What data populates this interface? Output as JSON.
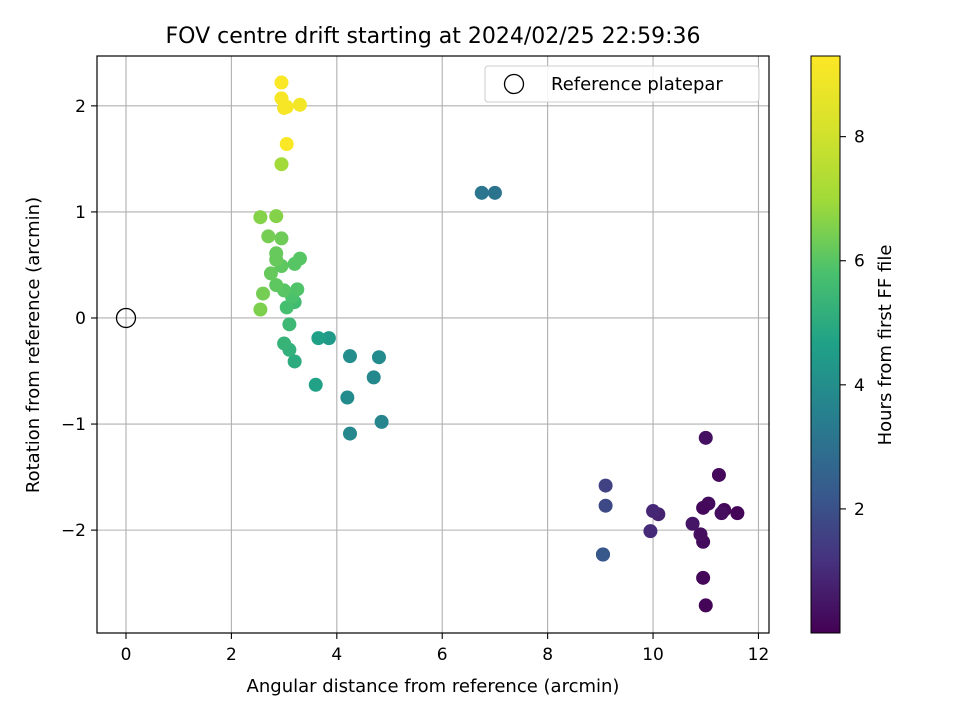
{
  "chart_data": {
    "type": "scatter",
    "title": "FOV centre drift starting at 2024/02/25 22:59:36",
    "xlabel": "Angular distance from reference (arcmin)",
    "ylabel": "Rotation from reference (arcmin)",
    "xlim": [
      -0.55,
      12.2
    ],
    "ylim": [
      -2.97,
      2.47
    ],
    "xticks": [
      0,
      2,
      4,
      6,
      8,
      10,
      12
    ],
    "yticks": [
      -2,
      -1,
      0,
      1,
      2
    ],
    "grid": true,
    "legend": {
      "placement": "top-right",
      "entries": [
        "Reference platepar"
      ]
    },
    "reference_point": {
      "x": 0,
      "y": 0,
      "label": "Reference platepar"
    },
    "colorbar": {
      "label": "Hours from first FF file",
      "colormap": "viridis",
      "range": [
        0,
        9.3
      ],
      "ticks": [
        2,
        4,
        6,
        8
      ]
    },
    "points": [
      {
        "x": 11.0,
        "y": -2.71,
        "c": 0.1
      },
      {
        "x": 10.95,
        "y": -2.45,
        "c": 0.15
      },
      {
        "x": 11.0,
        "y": -1.13,
        "c": 0.35
      },
      {
        "x": 11.25,
        "y": -1.48,
        "c": 0.2
      },
      {
        "x": 11.6,
        "y": -1.84,
        "c": 0.1
      },
      {
        "x": 11.35,
        "y": -1.81,
        "c": 0.2
      },
      {
        "x": 11.3,
        "y": -1.84,
        "c": 0.3
      },
      {
        "x": 11.05,
        "y": -1.75,
        "c": 0.25
      },
      {
        "x": 10.95,
        "y": -1.79,
        "c": 0.2
      },
      {
        "x": 10.95,
        "y": -2.11,
        "c": 0.25
      },
      {
        "x": 10.9,
        "y": -2.04,
        "c": 0.3
      },
      {
        "x": 10.75,
        "y": -1.94,
        "c": 0.5
      },
      {
        "x": 10.1,
        "y": -1.85,
        "c": 0.8
      },
      {
        "x": 10.0,
        "y": -1.82,
        "c": 0.9
      },
      {
        "x": 9.95,
        "y": -2.01,
        "c": 1.0
      },
      {
        "x": 9.1,
        "y": -1.58,
        "c": 1.6
      },
      {
        "x": 9.1,
        "y": -1.77,
        "c": 1.8
      },
      {
        "x": 9.05,
        "y": -2.23,
        "c": 1.8
      },
      {
        "x": 9.05,
        "y": -2.23,
        "c": 2.2
      },
      {
        "x": 6.75,
        "y": 1.18,
        "c": 3.2
      },
      {
        "x": 7.0,
        "y": 1.18,
        "c": 3.1
      },
      {
        "x": 4.85,
        "y": -0.98,
        "c": 3.7
      },
      {
        "x": 4.25,
        "y": -1.09,
        "c": 3.8
      },
      {
        "x": 4.2,
        "y": -0.75,
        "c": 3.9
      },
      {
        "x": 4.7,
        "y": -0.56,
        "c": 3.8
      },
      {
        "x": 4.8,
        "y": -0.37,
        "c": 3.9
      },
      {
        "x": 4.25,
        "y": -0.36,
        "c": 4.0
      },
      {
        "x": 3.85,
        "y": -0.19,
        "c": 4.4
      },
      {
        "x": 3.65,
        "y": -0.19,
        "c": 4.6
      },
      {
        "x": 3.6,
        "y": -0.63,
        "c": 4.7
      },
      {
        "x": 3.2,
        "y": -0.41,
        "c": 5.0
      },
      {
        "x": 3.1,
        "y": -0.3,
        "c": 5.2
      },
      {
        "x": 3.0,
        "y": -0.24,
        "c": 5.3
      },
      {
        "x": 3.1,
        "y": -0.06,
        "c": 5.5
      },
      {
        "x": 3.2,
        "y": 0.15,
        "c": 5.6
      },
      {
        "x": 3.05,
        "y": 0.1,
        "c": 5.7
      },
      {
        "x": 3.15,
        "y": 0.2,
        "c": 5.8
      },
      {
        "x": 3.25,
        "y": 0.27,
        "c": 5.9
      },
      {
        "x": 3.0,
        "y": 0.26,
        "c": 6.0
      },
      {
        "x": 2.85,
        "y": 0.31,
        "c": 6.1
      },
      {
        "x": 2.75,
        "y": 0.42,
        "c": 6.2
      },
      {
        "x": 2.6,
        "y": 0.23,
        "c": 6.4
      },
      {
        "x": 2.55,
        "y": 0.08,
        "c": 6.5
      },
      {
        "x": 2.95,
        "y": 0.49,
        "c": 6.1
      },
      {
        "x": 2.85,
        "y": 0.55,
        "c": 6.2
      },
      {
        "x": 2.85,
        "y": 0.61,
        "c": 6.2
      },
      {
        "x": 3.2,
        "y": 0.51,
        "c": 6.0
      },
      {
        "x": 3.3,
        "y": 0.56,
        "c": 6.0
      },
      {
        "x": 2.95,
        "y": 0.75,
        "c": 6.3
      },
      {
        "x": 2.7,
        "y": 0.77,
        "c": 6.4
      },
      {
        "x": 2.55,
        "y": 0.95,
        "c": 6.6
      },
      {
        "x": 2.85,
        "y": 0.96,
        "c": 6.6
      },
      {
        "x": 2.95,
        "y": 1.45,
        "c": 7.0
      },
      {
        "x": 3.05,
        "y": 1.64,
        "c": 9.2
      },
      {
        "x": 3.0,
        "y": 1.98,
        "c": 9.0
      },
      {
        "x": 3.05,
        "y": 1.99,
        "c": 9.1
      },
      {
        "x": 3.3,
        "y": 2.01,
        "c": 9.0
      },
      {
        "x": 2.95,
        "y": 2.07,
        "c": 9.1
      },
      {
        "x": 2.95,
        "y": 2.22,
        "c": 9.2
      }
    ]
  }
}
